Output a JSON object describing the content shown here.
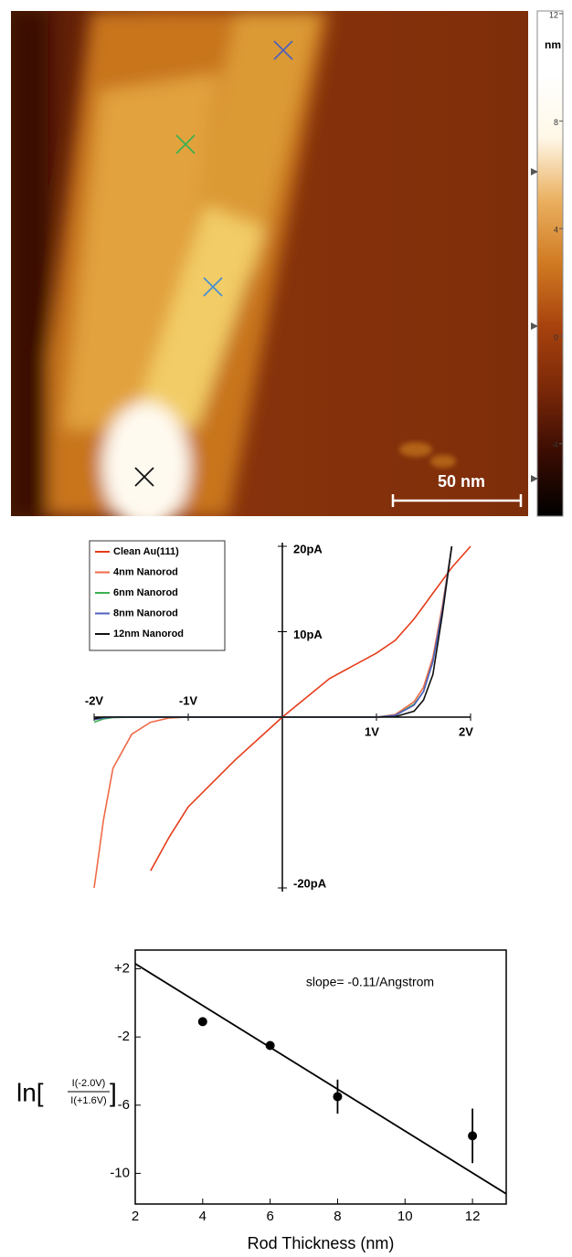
{
  "chart_data": [
    {
      "type": "image",
      "colorbar": {
        "label": "nm",
        "clim": [
          -6.7,
          12.1
        ],
        "ticks": [
          12,
          8,
          4,
          0,
          -4
        ],
        "colors": [
          "#000000",
          "#3a0c02",
          "#7a2808",
          "#a8420e",
          "#d07a22",
          "#eab060",
          "#fff8e8",
          "#ffffff",
          "#ffffff"
        ]
      },
      "scale_bar": "50 nm"
    },
    {
      "type": "line",
      "x": [
        -2,
        -1.9,
        -1.8,
        -1.6,
        -1.4,
        -1.2,
        -1,
        -0.5,
        0,
        0.5,
        1,
        1.2,
        1.4,
        1.5,
        1.6,
        1.7,
        1.8,
        2
      ],
      "xlim": [
        -2,
        2
      ],
      "xticks": [
        {
          "value": -2,
          "label": "-2V"
        },
        {
          "value": -1,
          "label": "-1V"
        },
        {
          "value": 1,
          "label": "1V"
        },
        {
          "value": 2,
          "label": "2V"
        }
      ],
      "ylim": [
        -20,
        20
      ],
      "yticks": [
        {
          "value": 20,
          "label": "20pA"
        },
        {
          "value": 10,
          "label": "10pA"
        },
        {
          "value": -20,
          "label": "-20pA"
        }
      ],
      "series": [
        {
          "name": "Clean Au(111)",
          "color": "#e63c1a",
          "values": [
            null,
            null,
            null,
            null,
            -18,
            -14,
            -10.5,
            -5,
            0,
            4.5,
            7.5,
            9,
            11.5,
            13,
            14.5,
            16,
            17.5,
            20
          ]
        },
        {
          "name": "4nm Nanorod",
          "color": "#f06a48",
          "values": [
            -20,
            -12,
            -6,
            -2,
            -0.6,
            -0.1,
            0,
            0,
            0,
            0,
            0,
            0.3,
            1.8,
            3.5,
            7,
            13,
            20,
            null
          ]
        },
        {
          "name": "6nm Nanorod",
          "color": "#3cb050",
          "values": [
            -0.6,
            -0.2,
            -0.05,
            0,
            0,
            0,
            0,
            0,
            0,
            0,
            0,
            0.2,
            1.5,
            3,
            6.5,
            12.5,
            20,
            null
          ]
        },
        {
          "name": "8nm Nanorod",
          "color": "#5060c0",
          "values": [
            -0.3,
            -0.1,
            0,
            0,
            0,
            0,
            0,
            0,
            0,
            0,
            0,
            0.2,
            1.4,
            3,
            6.5,
            12.5,
            20,
            null
          ]
        },
        {
          "name": "12nm Nanorod",
          "color": "#111111",
          "values": [
            -0.2,
            0,
            0,
            0,
            0,
            0,
            0,
            0,
            0,
            0,
            0,
            0.05,
            0.7,
            2,
            5,
            12,
            20,
            null
          ]
        }
      ]
    },
    {
      "type": "scatter",
      "annotation": "slope= -0.11/Angstrom",
      "y_label": {
        "prefix": "ln[",
        "numerator": "I(-2.0V)",
        "denominator": "I(+1.6V)",
        "suffix": "]"
      },
      "x_label": "Rod Thickness (nm)",
      "x": [
        4,
        6,
        8,
        12
      ],
      "values": [
        -1.1,
        -2.5,
        -5.5,
        -7.8
      ],
      "errors": [
        null,
        null,
        1.0,
        1.6
      ],
      "color": "#000000",
      "fit": {
        "x": [
          2,
          13
        ],
        "y": [
          2.3,
          -11.2
        ]
      },
      "xlim": [
        2,
        13
      ],
      "xticks": [
        2,
        4,
        6,
        8,
        10,
        12
      ],
      "ylim": [
        -11.8,
        3.1
      ],
      "yticks": [
        {
          "value": 2,
          "label": "+2"
        },
        -2,
        -6,
        -10
      ]
    }
  ]
}
